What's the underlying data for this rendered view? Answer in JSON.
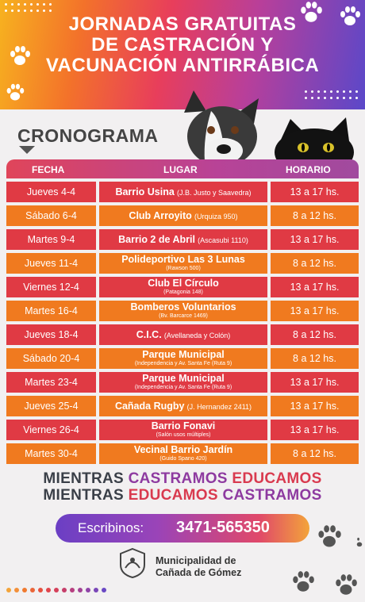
{
  "title": {
    "line1": "JORNADAS GRATUITAS",
    "line2": "DE CASTRACIÓN Y",
    "line3": "VACUNACIÓN ANTIRRÁBICA"
  },
  "section_title": "CRONOGRAMA",
  "table": {
    "headers": {
      "fecha": "FECHA",
      "lugar": "LUGAR",
      "horario": "HORARIO"
    },
    "rows": [
      {
        "fecha": "Jueves 4-4",
        "lugar": "Barrio Usina",
        "detalle": "(J.B. Justo y Saavedra)",
        "horario": "13 a 17 hs.",
        "color": "#e03a44"
      },
      {
        "fecha": "Sábado 6-4",
        "lugar": "Club Arroyito",
        "detalle": "(Urquiza 950)",
        "horario": "8 a 12 hs.",
        "color": "#f07a1f"
      },
      {
        "fecha": "Martes 9-4",
        "lugar": "Barrio 2 de Abril",
        "detalle": "(Ascasubi 1110)",
        "horario": "13 a 17 hs.",
        "color": "#e03a44"
      },
      {
        "fecha": "Jueves 11-4",
        "lugar": "Polideportivo Las 3 Lunas",
        "detalle": "(Rawson 500)",
        "horario": "8 a 12 hs.",
        "color": "#f07a1f"
      },
      {
        "fecha": "Viernes 12-4",
        "lugar": "Club El Círculo",
        "detalle": "(Patagonia 148)",
        "horario": "13 a 17 hs.",
        "color": "#e03a44"
      },
      {
        "fecha": "Martes 16-4",
        "lugar": "Bomberos Voluntarios",
        "detalle": "(Bv. Barcarce 1469)",
        "horario": "13 a 17 hs.",
        "color": "#f07a1f"
      },
      {
        "fecha": "Jueves 18-4",
        "lugar": "C.I.C.",
        "detalle": "(Avellaneda y Colón)",
        "horario": "8 a 12 hs.",
        "color": "#e03a44"
      },
      {
        "fecha": "Sábado 20-4",
        "lugar": "Parque Municipal",
        "detalle": "(Independencia y Av. Santa Fe (Ruta 9)",
        "horario": "8 a 12 hs.",
        "color": "#f07a1f"
      },
      {
        "fecha": "Martes 23-4",
        "lugar": "Parque Municipal",
        "detalle": "(Independencia y Av. Santa Fe (Ruta 9)",
        "horario": "13 a 17 hs.",
        "color": "#e03a44"
      },
      {
        "fecha": "Jueves 25-4",
        "lugar": "Cañada Rugby",
        "detalle": "(J. Hernandez 2411)",
        "horario": "13 a 17 hs.",
        "color": "#f07a1f"
      },
      {
        "fecha": "Viernes 26-4",
        "lugar": "Barrio Fonavi",
        "detalle": "(Salón usos múltiples)",
        "horario": "13 a 17 hs.",
        "color": "#e03a44"
      },
      {
        "fecha": "Martes 30-4",
        "lugar": "Vecinal Barrio Jardín",
        "detalle": "(Guido Spano 420)",
        "horario": "8 a 12 hs.",
        "color": "#f07a1f"
      }
    ]
  },
  "slogan": {
    "line1": {
      "a": "MIENTRAS",
      "b": "CASTRAMOS",
      "c": "EDUCAMOS"
    },
    "line2": {
      "a": "MIENTRAS",
      "b": "EDUCAMOS",
      "c": "CASTRAMOS"
    }
  },
  "contact": {
    "label": "Escribinos:",
    "phone": "3471-565350"
  },
  "organization": {
    "line1": "Municipalidad de",
    "line2": "Cañada de Gómez"
  },
  "icons": [
    "paw-print-icon",
    "dog-photo",
    "cat-photo",
    "municipal-logo"
  ],
  "colors": {
    "red_row": "#e03a44",
    "orange_row": "#f07a1f",
    "purple": "#8e3aa0",
    "slogan_red": "#d93a4f"
  }
}
